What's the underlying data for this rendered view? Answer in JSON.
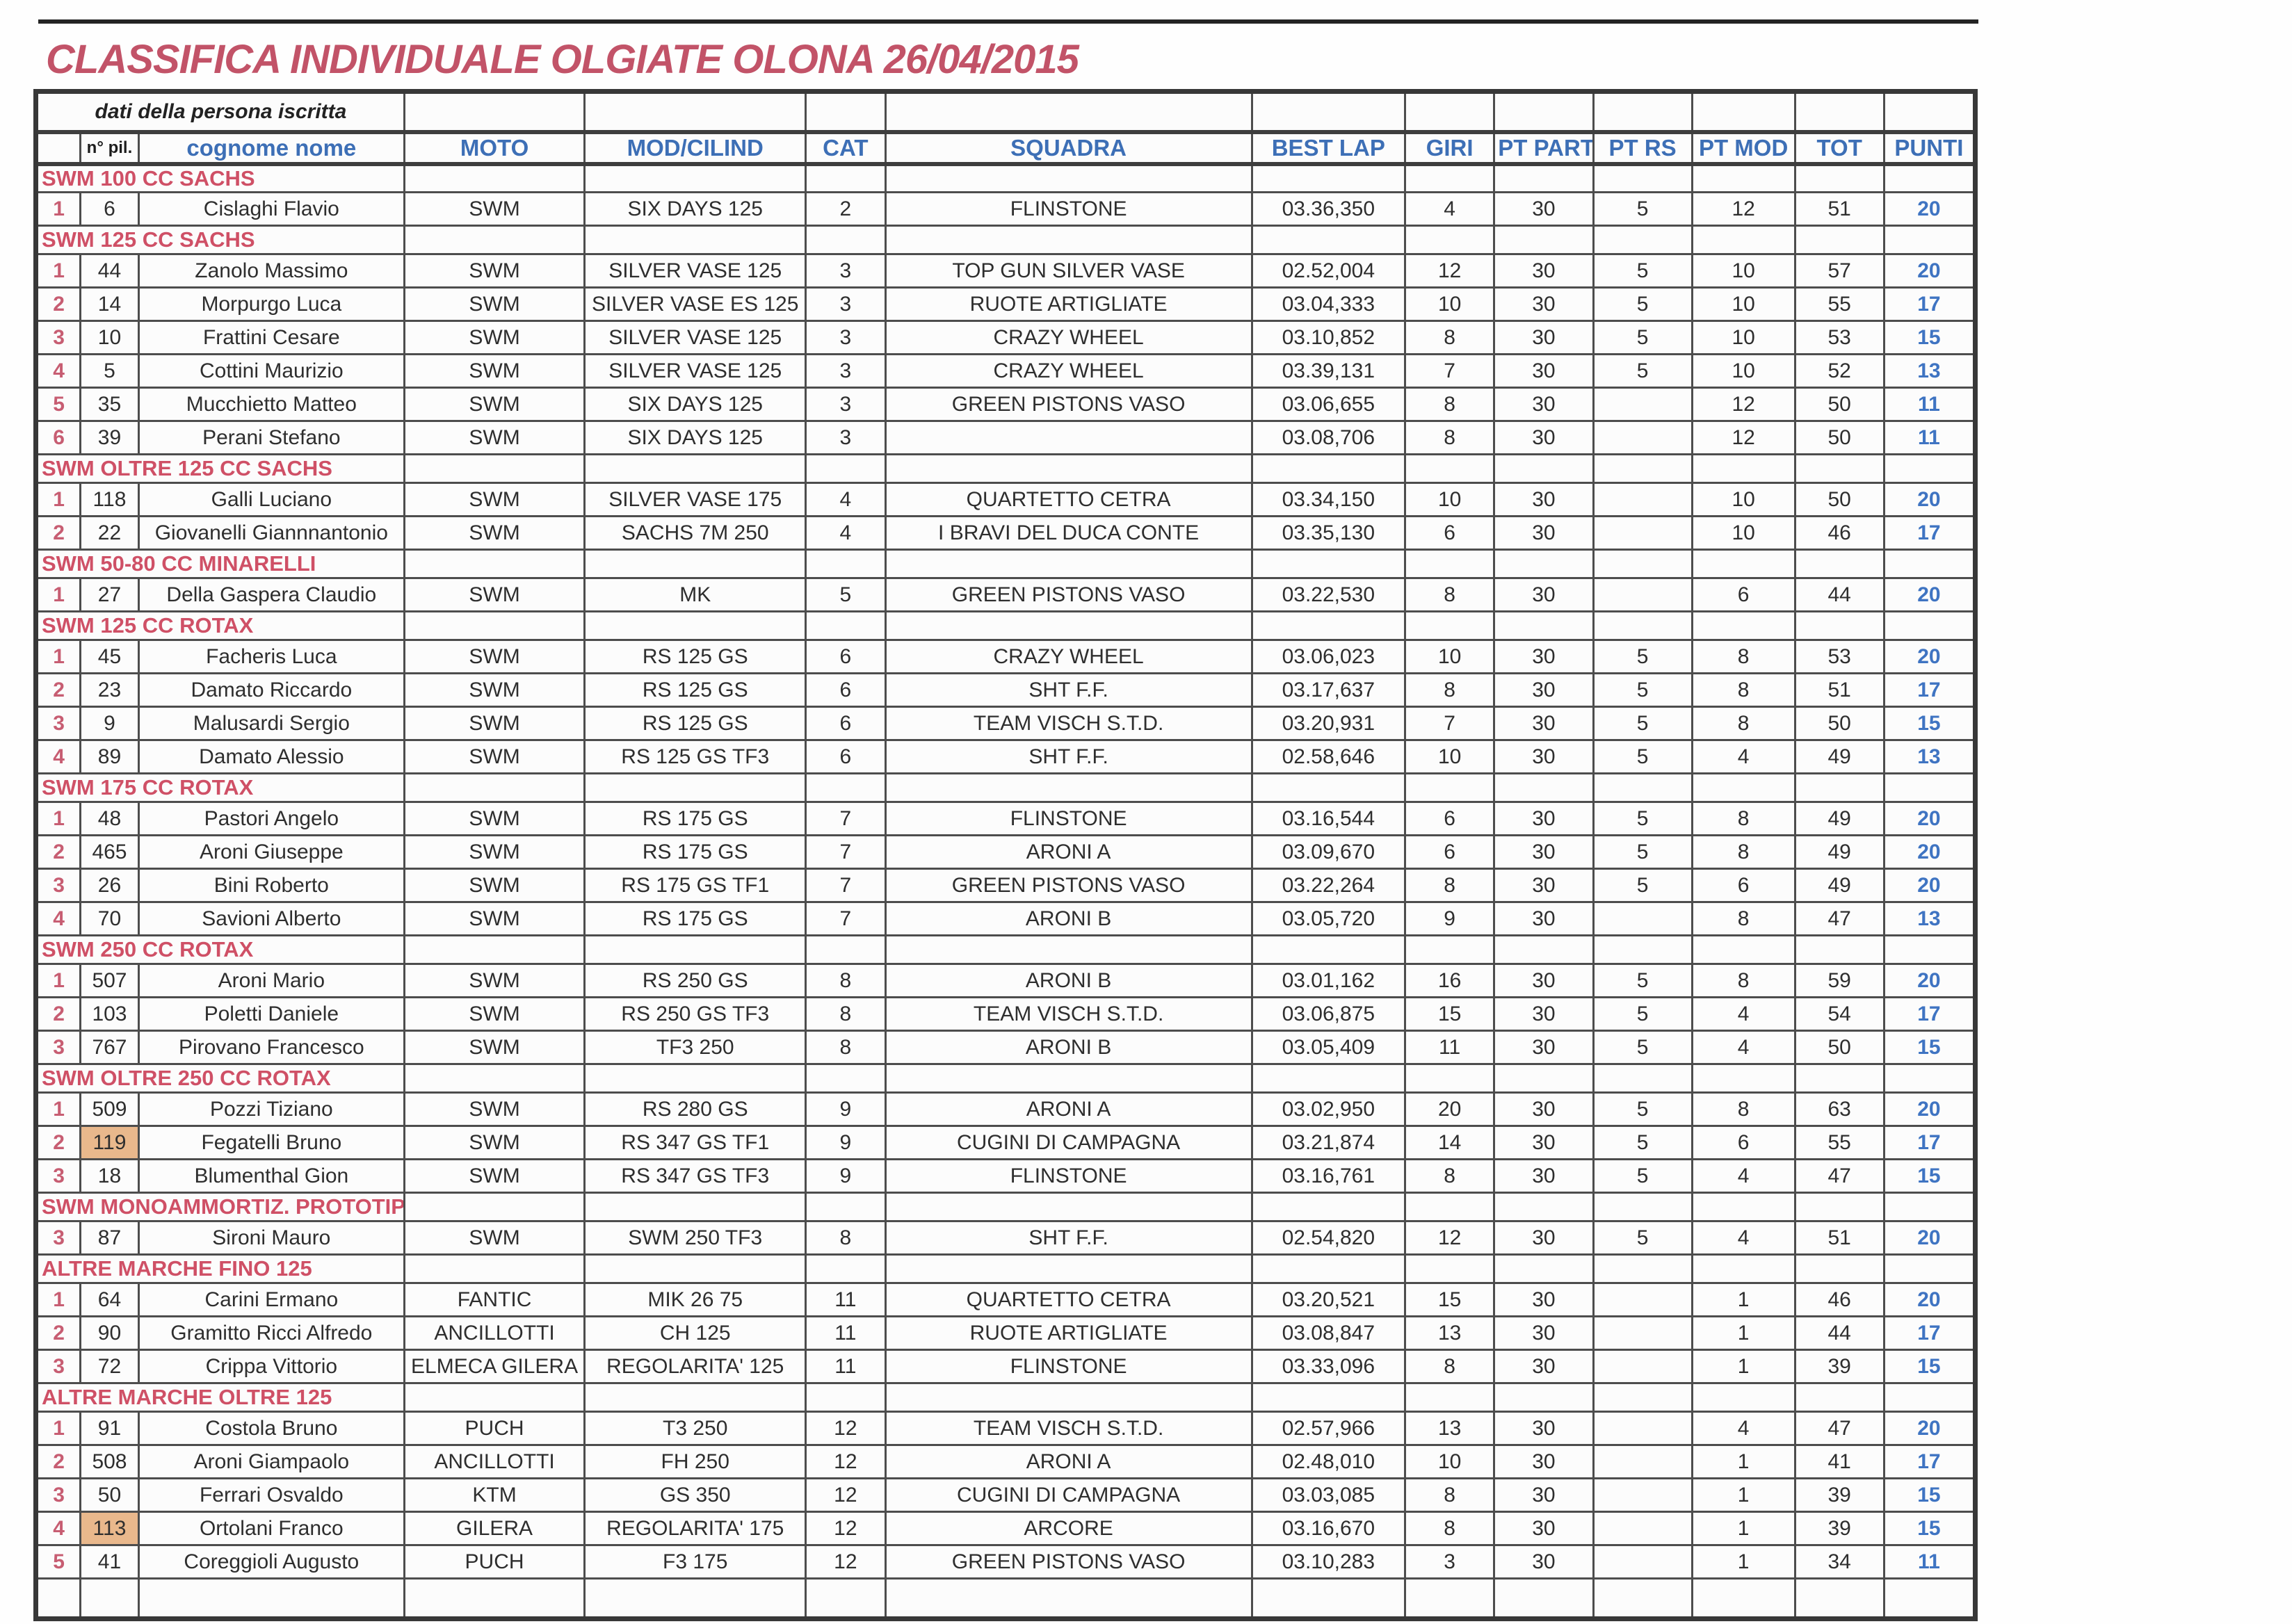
{
  "page": {
    "title": "CLASSIFICA INDIVIDUALE OLGIATE OLONA 26/04/2015"
  },
  "colors": {
    "title_red": "#c25368",
    "section_red": "#cf5066",
    "header_blue": "#3d6fb6",
    "points_blue": "#3f74c2",
    "highlight_tan": "#e9b88c"
  },
  "table": {
    "group_header": "dati della persona iscritta",
    "columns": [
      "",
      "n° pil.",
      "cognome nome",
      "MOTO",
      "MOD/CILIND",
      "CAT",
      "SQUADRA",
      "BEST LAP",
      "GIRI",
      "PT PART",
      "PT RS",
      "PT MOD",
      "TOT",
      "PUNTI"
    ],
    "sections": [
      {
        "title": "SWM 100 CC SACHS",
        "rows": [
          {
            "pos": "1",
            "num": "6",
            "name": "Cislaghi Flavio",
            "moto": "SWM",
            "model": "SIX DAYS 125",
            "cat": "2",
            "team": "FLINSTONE",
            "lap": "03.36,350",
            "giri": "4",
            "part": "30",
            "rs": "5",
            "mod": "12",
            "tot": "51",
            "punti": "20"
          }
        ]
      },
      {
        "title": "SWM 125 CC SACHS",
        "rows": [
          {
            "pos": "1",
            "num": "44",
            "name": "Zanolo Massimo",
            "moto": "SWM",
            "model": "SILVER VASE 125",
            "cat": "3",
            "team": "TOP GUN SILVER VASE",
            "lap": "02.52,004",
            "giri": "12",
            "part": "30",
            "rs": "5",
            "mod": "10",
            "tot": "57",
            "punti": "20"
          },
          {
            "pos": "2",
            "num": "14",
            "name": "Morpurgo Luca",
            "moto": "SWM",
            "model": "SILVER VASE ES 125",
            "cat": "3",
            "team": "RUOTE ARTIGLIATE",
            "lap": "03.04,333",
            "giri": "10",
            "part": "30",
            "rs": "5",
            "mod": "10",
            "tot": "55",
            "punti": "17"
          },
          {
            "pos": "3",
            "num": "10",
            "name": "Frattini Cesare",
            "moto": "SWM",
            "model": "SILVER VASE 125",
            "cat": "3",
            "team": "CRAZY WHEEL",
            "lap": "03.10,852",
            "giri": "8",
            "part": "30",
            "rs": "5",
            "mod": "10",
            "tot": "53",
            "punti": "15"
          },
          {
            "pos": "4",
            "num": "5",
            "name": "Cottini Maurizio",
            "moto": "SWM",
            "model": "SILVER VASE 125",
            "cat": "3",
            "team": "CRAZY WHEEL",
            "lap": "03.39,131",
            "giri": "7",
            "part": "30",
            "rs": "5",
            "mod": "10",
            "tot": "52",
            "punti": "13"
          },
          {
            "pos": "5",
            "num": "35",
            "name": "Mucchietto Matteo",
            "moto": "SWM",
            "model": "SIX DAYS 125",
            "cat": "3",
            "team": "GREEN PISTONS VASO",
            "lap": "03.06,655",
            "giri": "8",
            "part": "30",
            "rs": "",
            "mod": "12",
            "tot": "50",
            "punti": "11"
          },
          {
            "pos": "6",
            "num": "39",
            "name": "Perani Stefano",
            "moto": "SWM",
            "model": "SIX DAYS 125",
            "cat": "3",
            "team": "",
            "lap": "03.08,706",
            "giri": "8",
            "part": "30",
            "rs": "",
            "mod": "12",
            "tot": "50",
            "punti": "11"
          }
        ]
      },
      {
        "title": "SWM OLTRE 125 CC SACHS",
        "rows": [
          {
            "pos": "1",
            "num": "118",
            "name": "Galli Luciano",
            "moto": "SWM",
            "model": "SILVER VASE 175",
            "cat": "4",
            "team": "QUARTETTO CETRA",
            "lap": "03.34,150",
            "giri": "10",
            "part": "30",
            "rs": "",
            "mod": "10",
            "tot": "50",
            "punti": "20"
          },
          {
            "pos": "2",
            "num": "22",
            "name": "Giovanelli Giannnantonio",
            "moto": "SWM",
            "model": "SACHS 7M 250",
            "cat": "4",
            "team": "I BRAVI DEL DUCA CONTE",
            "lap": "03.35,130",
            "giri": "6",
            "part": "30",
            "rs": "",
            "mod": "10",
            "tot": "46",
            "punti": "17"
          }
        ]
      },
      {
        "title": "SWM 50-80 CC MINARELLI",
        "rows": [
          {
            "pos": "1",
            "num": "27",
            "name": "Della Gaspera Claudio",
            "moto": "SWM",
            "model": "MK",
            "cat": "5",
            "team": "GREEN PISTONS VASO",
            "lap": "03.22,530",
            "giri": "8",
            "part": "30",
            "rs": "",
            "mod": "6",
            "tot": "44",
            "punti": "20"
          }
        ]
      },
      {
        "title": "SWM 125 CC ROTAX",
        "rows": [
          {
            "pos": "1",
            "num": "45",
            "name": "Facheris Luca",
            "moto": "SWM",
            "model": "RS 125 GS",
            "cat": "6",
            "team": "CRAZY WHEEL",
            "lap": "03.06,023",
            "giri": "10",
            "part": "30",
            "rs": "5",
            "mod": "8",
            "tot": "53",
            "punti": "20"
          },
          {
            "pos": "2",
            "num": "23",
            "name": "Damato Riccardo",
            "moto": "SWM",
            "model": "RS 125 GS",
            "cat": "6",
            "team": "SHT F.F.",
            "lap": "03.17,637",
            "giri": "8",
            "part": "30",
            "rs": "5",
            "mod": "8",
            "tot": "51",
            "punti": "17"
          },
          {
            "pos": "3",
            "num": "9",
            "name": "Malusardi Sergio",
            "moto": "SWM",
            "model": "RS 125 GS",
            "cat": "6",
            "team": "TEAM VISCH S.T.D.",
            "lap": "03.20,931",
            "giri": "7",
            "part": "30",
            "rs": "5",
            "mod": "8",
            "tot": "50",
            "punti": "15"
          },
          {
            "pos": "4",
            "num": "89",
            "name": "Damato Alessio",
            "moto": "SWM",
            "model": "RS 125 GS TF3",
            "cat": "6",
            "team": "SHT F.F.",
            "lap": "02.58,646",
            "giri": "10",
            "part": "30",
            "rs": "5",
            "mod": "4",
            "tot": "49",
            "punti": "13"
          }
        ]
      },
      {
        "title": "SWM 175 CC ROTAX",
        "rows": [
          {
            "pos": "1",
            "num": "48",
            "name": "Pastori Angelo",
            "moto": "SWM",
            "model": "RS 175 GS",
            "cat": "7",
            "team": "FLINSTONE",
            "lap": "03.16,544",
            "giri": "6",
            "part": "30",
            "rs": "5",
            "mod": "8",
            "tot": "49",
            "punti": "20"
          },
          {
            "pos": "2",
            "num": "465",
            "name": "Aroni Giuseppe",
            "moto": "SWM",
            "model": "RS 175 GS",
            "cat": "7",
            "team": "ARONI A",
            "lap": "03.09,670",
            "giri": "6",
            "part": "30",
            "rs": "5",
            "mod": "8",
            "tot": "49",
            "punti": "20"
          },
          {
            "pos": "3",
            "num": "26",
            "name": "Bini Roberto",
            "moto": "SWM",
            "model": "RS 175 GS TF1",
            "cat": "7",
            "team": "GREEN PISTONS VASO",
            "lap": "03.22,264",
            "giri": "8",
            "part": "30",
            "rs": "5",
            "mod": "6",
            "tot": "49",
            "punti": "20"
          },
          {
            "pos": "4",
            "num": "70",
            "name": "Savioni Alberto",
            "moto": "SWM",
            "model": "RS 175 GS",
            "cat": "7",
            "team": "ARONI B",
            "lap": "03.05,720",
            "giri": "9",
            "part": "30",
            "rs": "",
            "mod": "8",
            "tot": "47",
            "punti": "13"
          }
        ]
      },
      {
        "title": "SWM 250 CC ROTAX",
        "rows": [
          {
            "pos": "1",
            "num": "507",
            "name": "Aroni Mario",
            "moto": "SWM",
            "model": "RS 250 GS",
            "cat": "8",
            "team": "ARONI B",
            "lap": "03.01,162",
            "giri": "16",
            "part": "30",
            "rs": "5",
            "mod": "8",
            "tot": "59",
            "punti": "20"
          },
          {
            "pos": "2",
            "num": "103",
            "name": "Poletti Daniele",
            "moto": "SWM",
            "model": "RS 250 GS TF3",
            "cat": "8",
            "team": "TEAM VISCH S.T.D.",
            "lap": "03.06,875",
            "giri": "15",
            "part": "30",
            "rs": "5",
            "mod": "4",
            "tot": "54",
            "punti": "17"
          },
          {
            "pos": "3",
            "num": "767",
            "name": "Pirovano Francesco",
            "moto": "SWM",
            "model": "TF3 250",
            "cat": "8",
            "team": "ARONI B",
            "lap": "03.05,409",
            "giri": "11",
            "part": "30",
            "rs": "5",
            "mod": "4",
            "tot": "50",
            "punti": "15"
          }
        ]
      },
      {
        "title": "SWM OLTRE 250 CC ROTAX",
        "rows": [
          {
            "pos": "1",
            "num": "509",
            "name": "Pozzi Tiziano",
            "moto": "SWM",
            "model": "RS 280 GS",
            "cat": "9",
            "team": "ARONI A",
            "lap": "03.02,950",
            "giri": "20",
            "part": "30",
            "rs": "5",
            "mod": "8",
            "tot": "63",
            "punti": "20"
          },
          {
            "pos": "2",
            "num": "119",
            "hl": true,
            "name": "Fegatelli Bruno",
            "moto": "SWM",
            "model": "RS 347 GS TF1",
            "cat": "9",
            "team": "CUGINI DI CAMPAGNA",
            "lap": "03.21,874",
            "giri": "14",
            "part": "30",
            "rs": "5",
            "mod": "6",
            "tot": "55",
            "punti": "17"
          },
          {
            "pos": "3",
            "num": "18",
            "name": "Blumenthal Gion",
            "moto": "SWM",
            "model": "RS 347 GS TF3",
            "cat": "9",
            "team": "FLINSTONE",
            "lap": "03.16,761",
            "giri": "8",
            "part": "30",
            "rs": "5",
            "mod": "4",
            "tot": "47",
            "punti": "15"
          }
        ]
      },
      {
        "title": "SWM MONOAMMORTIZ. PROTOTIPI",
        "rows": [
          {
            "pos": "3",
            "num": "87",
            "name": "Sironi Mauro",
            "moto": "SWM",
            "model": "SWM 250 TF3",
            "cat": "8",
            "team": "SHT F.F.",
            "lap": "02.54,820",
            "giri": "12",
            "part": "30",
            "rs": "5",
            "mod": "4",
            "tot": "51",
            "punti": "20"
          }
        ]
      },
      {
        "title": "ALTRE MARCHE FINO 125",
        "rows": [
          {
            "pos": "1",
            "num": "64",
            "name": "Carini Ermano",
            "moto": "FANTIC",
            "model": "MIK 26 75",
            "cat": "11",
            "team": "QUARTETTO CETRA",
            "lap": "03.20,521",
            "giri": "15",
            "part": "30",
            "rs": "",
            "mod": "1",
            "tot": "46",
            "punti": "20"
          },
          {
            "pos": "2",
            "num": "90",
            "name": "Gramitto Ricci Alfredo",
            "moto": "ANCILLOTTI",
            "model": "CH 125",
            "cat": "11",
            "team": "RUOTE ARTIGLIATE",
            "lap": "03.08,847",
            "giri": "13",
            "part": "30",
            "rs": "",
            "mod": "1",
            "tot": "44",
            "punti": "17"
          },
          {
            "pos": "3",
            "num": "72",
            "name": "Crippa Vittorio",
            "moto": "ELMECA GILERA",
            "model": "REGOLARITA' 125",
            "cat": "11",
            "team": "FLINSTONE",
            "lap": "03.33,096",
            "giri": "8",
            "part": "30",
            "rs": "",
            "mod": "1",
            "tot": "39",
            "punti": "15"
          }
        ]
      },
      {
        "title": "ALTRE MARCHE OLTRE 125",
        "rows": [
          {
            "pos": "1",
            "num": "91",
            "name": "Costola Bruno",
            "moto": "PUCH",
            "model": "T3 250",
            "cat": "12",
            "team": "TEAM VISCH S.T.D.",
            "lap": "02.57,966",
            "giri": "13",
            "part": "30",
            "rs": "",
            "mod": "4",
            "tot": "47",
            "punti": "20"
          },
          {
            "pos": "2",
            "num": "508",
            "name": "Aroni Giampaolo",
            "moto": "ANCILLOTTI",
            "model": "FH 250",
            "cat": "12",
            "team": "ARONI A",
            "lap": "02.48,010",
            "giri": "10",
            "part": "30",
            "rs": "",
            "mod": "1",
            "tot": "41",
            "punti": "17"
          },
          {
            "pos": "3",
            "num": "50",
            "name": "Ferrari Osvaldo",
            "moto": "KTM",
            "model": "GS 350",
            "cat": "12",
            "team": "CUGINI DI CAMPAGNA",
            "lap": "03.03,085",
            "giri": "8",
            "part": "30",
            "rs": "",
            "mod": "1",
            "tot": "39",
            "punti": "15"
          },
          {
            "pos": "4",
            "num": "113",
            "hl": true,
            "name": "Ortolani Franco",
            "moto": "GILERA",
            "model": "REGOLARITA' 175",
            "cat": "12",
            "team": "ARCORE",
            "lap": "03.16,670",
            "giri": "8",
            "part": "30",
            "rs": "",
            "mod": "1",
            "tot": "39",
            "punti": "15"
          },
          {
            "pos": "5",
            "num": "41",
            "name": "Coreggioli Augusto",
            "moto": "PUCH",
            "model": "F3 175",
            "cat": "12",
            "team": "GREEN PISTONS VASO",
            "lap": "03.10,283",
            "giri": "3",
            "part": "30",
            "rs": "",
            "mod": "1",
            "tot": "34",
            "punti": "11"
          }
        ]
      }
    ]
  }
}
